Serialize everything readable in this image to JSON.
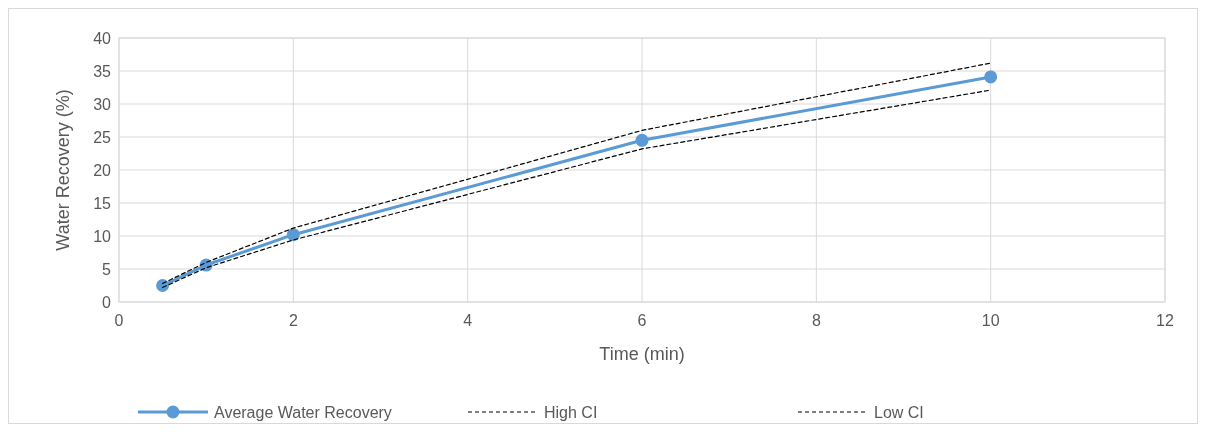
{
  "chart_data": {
    "type": "line",
    "xlabel": "Time (min)",
    "ylabel": "Water Recovery (%)",
    "x": [
      0.5,
      1,
      2,
      6,
      10
    ],
    "series": [
      {
        "name": "Average Water Recovery",
        "color": "#5b9bd5",
        "values": [
          2.5,
          5.6,
          10.2,
          24.5,
          34.1
        ],
        "marker": "circle",
        "line_style": "solid"
      },
      {
        "name": "High CI",
        "color": "#000000",
        "values": [
          2.8,
          6.0,
          11.2,
          26.0,
          36.2
        ],
        "marker": "none",
        "line_style": "dashed"
      },
      {
        "name": "Low CI",
        "color": "#000000",
        "values": [
          2.2,
          5.2,
          9.4,
          23.2,
          32.1
        ],
        "marker": "none",
        "line_style": "dashed"
      }
    ],
    "xlim": [
      0,
      12
    ],
    "xticks": [
      0,
      2,
      4,
      6,
      8,
      10,
      12
    ],
    "ylim": [
      0,
      40
    ],
    "yticks": [
      0,
      5,
      10,
      15,
      20,
      25,
      30,
      35,
      40
    ],
    "grid": true,
    "legend": "bottom"
  }
}
